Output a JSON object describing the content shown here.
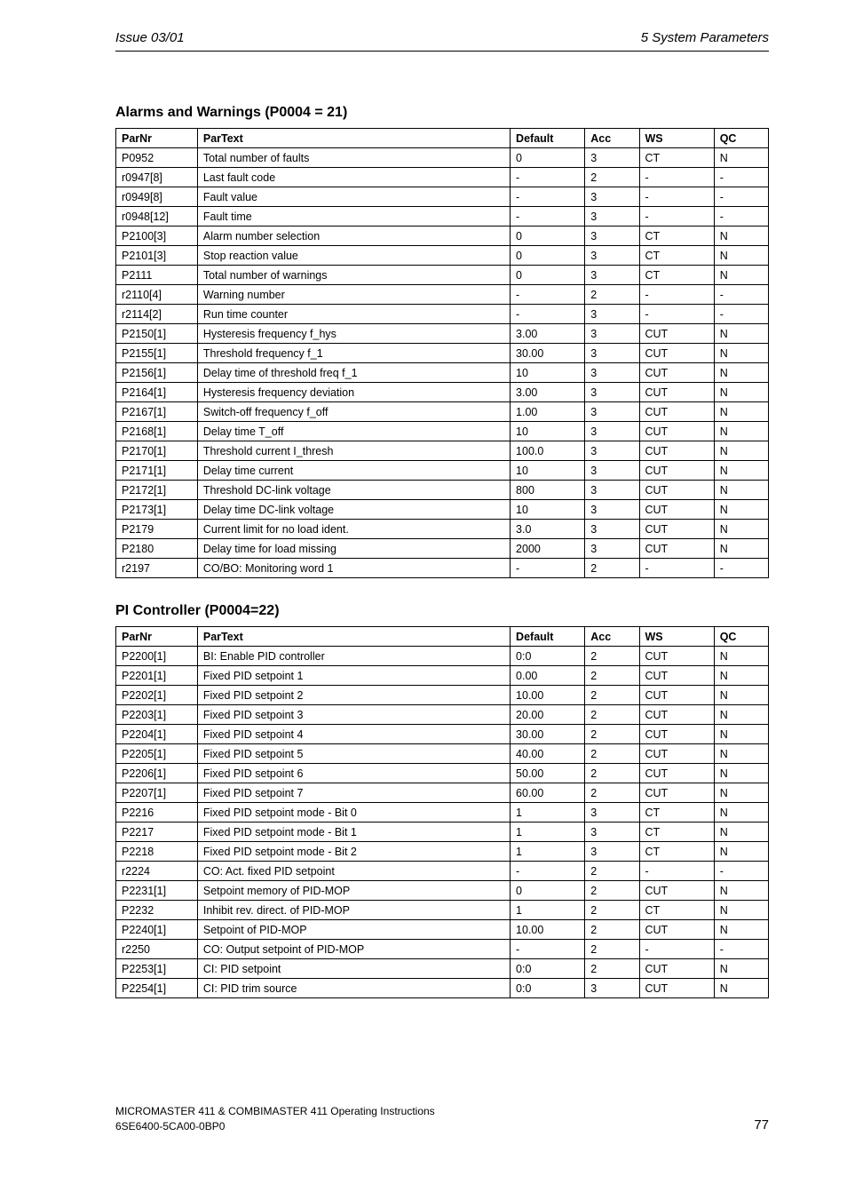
{
  "header": {
    "left": "Issue 03/01",
    "right": "5  System Parameters"
  },
  "section1": {
    "title": "Alarms and Warnings (P0004 = 21)",
    "headers": {
      "parnr": "ParNr",
      "partext": "ParText",
      "default": "Default",
      "acc": "Acc",
      "ws": "WS",
      "qc": "QC"
    },
    "rows": [
      {
        "parnr": "P0952",
        "partext": "Total number of faults",
        "default": "0",
        "acc": "3",
        "ws": "CT",
        "qc": "N"
      },
      {
        "parnr": "r0947[8]",
        "partext": "Last fault code",
        "default": "-",
        "acc": "2",
        "ws": "-",
        "qc": "-"
      },
      {
        "parnr": "r0949[8]",
        "partext": "Fault value",
        "default": "-",
        "acc": "3",
        "ws": "-",
        "qc": "-"
      },
      {
        "parnr": "r0948[12]",
        "partext": "Fault time",
        "default": "-",
        "acc": "3",
        "ws": "-",
        "qc": "-"
      },
      {
        "parnr": "P2100[3]",
        "partext": "Alarm number selection",
        "default": "0",
        "acc": "3",
        "ws": "CT",
        "qc": "N"
      },
      {
        "parnr": "P2101[3]",
        "partext": "Stop reaction value",
        "default": "0",
        "acc": "3",
        "ws": "CT",
        "qc": "N"
      },
      {
        "parnr": "P2111",
        "partext": "Total number of warnings",
        "default": "0",
        "acc": "3",
        "ws": "CT",
        "qc": "N"
      },
      {
        "parnr": "r2110[4]",
        "partext": "Warning number",
        "default": "-",
        "acc": "2",
        "ws": "-",
        "qc": "-"
      },
      {
        "parnr": "r2114[2]",
        "partext": "Run time counter",
        "default": "-",
        "acc": "3",
        "ws": "-",
        "qc": "-"
      },
      {
        "parnr": "P2150[1]",
        "partext": "Hysteresis frequency f_hys",
        "default": "3.00",
        "acc": "3",
        "ws": "CUT",
        "qc": "N"
      },
      {
        "parnr": "P2155[1]",
        "partext": "Threshold frequency f_1",
        "default": "30.00",
        "acc": "3",
        "ws": "CUT",
        "qc": "N"
      },
      {
        "parnr": "P2156[1]",
        "partext": "Delay time of threshold freq f_1",
        "default": "10",
        "acc": "3",
        "ws": "CUT",
        "qc": "N"
      },
      {
        "parnr": "P2164[1]",
        "partext": "Hysteresis frequency deviation",
        "default": "3.00",
        "acc": "3",
        "ws": "CUT",
        "qc": "N"
      },
      {
        "parnr": "P2167[1]",
        "partext": "Switch-off frequency f_off",
        "default": "1.00",
        "acc": "3",
        "ws": "CUT",
        "qc": "N"
      },
      {
        "parnr": "P2168[1]",
        "partext": "Delay time T_off",
        "default": "10",
        "acc": "3",
        "ws": "CUT",
        "qc": "N"
      },
      {
        "parnr": "P2170[1]",
        "partext": "Threshold current I_thresh",
        "default": "100.0",
        "acc": "3",
        "ws": "CUT",
        "qc": "N"
      },
      {
        "parnr": "P2171[1]",
        "partext": "Delay time current",
        "default": "10",
        "acc": "3",
        "ws": "CUT",
        "qc": "N"
      },
      {
        "parnr": "P2172[1]",
        "partext": "Threshold DC-link voltage",
        "default": "800",
        "acc": "3",
        "ws": "CUT",
        "qc": "N"
      },
      {
        "parnr": "P2173[1]",
        "partext": "Delay time DC-link voltage",
        "default": "10",
        "acc": "3",
        "ws": "CUT",
        "qc": "N"
      },
      {
        "parnr": "P2179",
        "partext": "Current limit for no load ident.",
        "default": "3.0",
        "acc": "3",
        "ws": "CUT",
        "qc": "N"
      },
      {
        "parnr": "P2180",
        "partext": "Delay time for load missing",
        "default": "2000",
        "acc": "3",
        "ws": "CUT",
        "qc": "N"
      },
      {
        "parnr": "r2197",
        "partext": "CO/BO: Monitoring word 1",
        "default": "-",
        "acc": "2",
        "ws": "-",
        "qc": "-"
      }
    ]
  },
  "section2": {
    "title": "PI Controller (P0004=22)",
    "headers": {
      "parnr": "ParNr",
      "partext": "ParText",
      "default": "Default",
      "acc": "Acc",
      "ws": "WS",
      "qc": "QC"
    },
    "rows": [
      {
        "parnr": "P2200[1]",
        "partext": "BI: Enable PID controller",
        "default": "0:0",
        "acc": "2",
        "ws": "CUT",
        "qc": "N"
      },
      {
        "parnr": "P2201[1]",
        "partext": "Fixed PID setpoint 1",
        "default": "0.00",
        "acc": "2",
        "ws": "CUT",
        "qc": "N"
      },
      {
        "parnr": "P2202[1]",
        "partext": "Fixed PID setpoint 2",
        "default": "10.00",
        "acc": "2",
        "ws": "CUT",
        "qc": "N"
      },
      {
        "parnr": "P2203[1]",
        "partext": "Fixed PID setpoint 3",
        "default": "20.00",
        "acc": "2",
        "ws": "CUT",
        "qc": "N"
      },
      {
        "parnr": "P2204[1]",
        "partext": "Fixed PID setpoint 4",
        "default": "30.00",
        "acc": "2",
        "ws": "CUT",
        "qc": "N"
      },
      {
        "parnr": "P2205[1]",
        "partext": "Fixed PID setpoint 5",
        "default": "40.00",
        "acc": "2",
        "ws": "CUT",
        "qc": "N"
      },
      {
        "parnr": "P2206[1]",
        "partext": "Fixed PID setpoint 6",
        "default": "50.00",
        "acc": "2",
        "ws": "CUT",
        "qc": "N"
      },
      {
        "parnr": "P2207[1]",
        "partext": "Fixed PID setpoint 7",
        "default": "60.00",
        "acc": "2",
        "ws": "CUT",
        "qc": "N"
      },
      {
        "parnr": "P2216",
        "partext": "Fixed PID setpoint mode - Bit 0",
        "default": "1",
        "acc": "3",
        "ws": "CT",
        "qc": "N"
      },
      {
        "parnr": "P2217",
        "partext": "Fixed PID setpoint mode - Bit 1",
        "default": "1",
        "acc": "3",
        "ws": "CT",
        "qc": "N"
      },
      {
        "parnr": "P2218",
        "partext": "Fixed PID setpoint mode - Bit 2",
        "default": "1",
        "acc": "3",
        "ws": "CT",
        "qc": "N"
      },
      {
        "parnr": "r2224",
        "partext": "CO: Act. fixed PID setpoint",
        "default": "-",
        "acc": "2",
        "ws": "-",
        "qc": "-"
      },
      {
        "parnr": "P2231[1]",
        "partext": "Setpoint memory of PID-MOP",
        "default": "0",
        "acc": "2",
        "ws": "CUT",
        "qc": "N"
      },
      {
        "parnr": "P2232",
        "partext": "Inhibit rev. direct. of PID-MOP",
        "default": "1",
        "acc": "2",
        "ws": "CT",
        "qc": "N"
      },
      {
        "parnr": "P2240[1]",
        "partext": "Setpoint of PID-MOP",
        "default": "10.00",
        "acc": "2",
        "ws": "CUT",
        "qc": "N"
      },
      {
        "parnr": "r2250",
        "partext": "CO: Output setpoint of PID-MOP",
        "default": "-",
        "acc": "2",
        "ws": "-",
        "qc": "-"
      },
      {
        "parnr": "P2253[1]",
        "partext": "CI: PID setpoint",
        "default": "0:0",
        "acc": "2",
        "ws": "CUT",
        "qc": "N"
      },
      {
        "parnr": "P2254[1]",
        "partext": "CI: PID trim source",
        "default": "0:0",
        "acc": "3",
        "ws": "CUT",
        "qc": "N"
      }
    ]
  },
  "footer": {
    "line1": "MICROMASTER 411 & COMBIMASTER 411    Operating Instructions",
    "line2": "6SE6400-5CA00-0BP0",
    "page": "77"
  }
}
